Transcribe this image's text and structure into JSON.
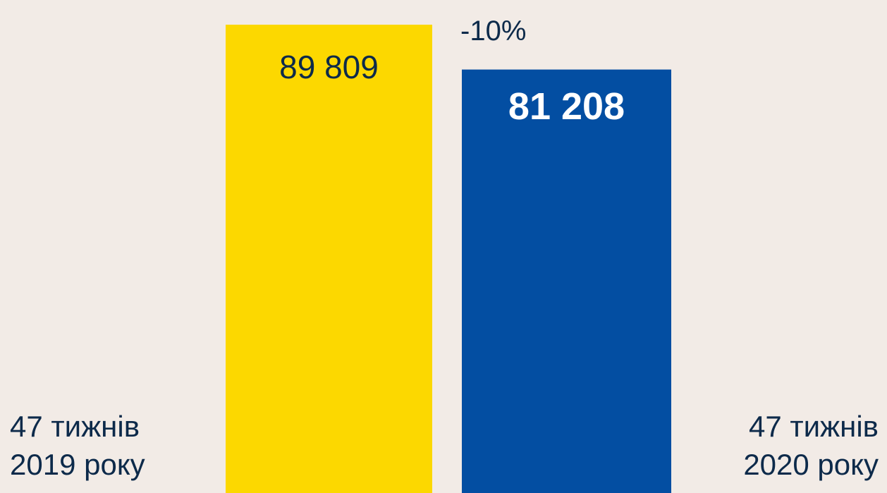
{
  "chart_data": {
    "type": "bar",
    "categories": [
      "47 тижнів 2019 року",
      "47 тижнів 2020 року"
    ],
    "values": [
      89809,
      81208
    ],
    "value_labels": [
      "89 809",
      "81 208"
    ],
    "colors": [
      "#fcd800",
      "#034ea2"
    ],
    "annotation": "-10%"
  }
}
